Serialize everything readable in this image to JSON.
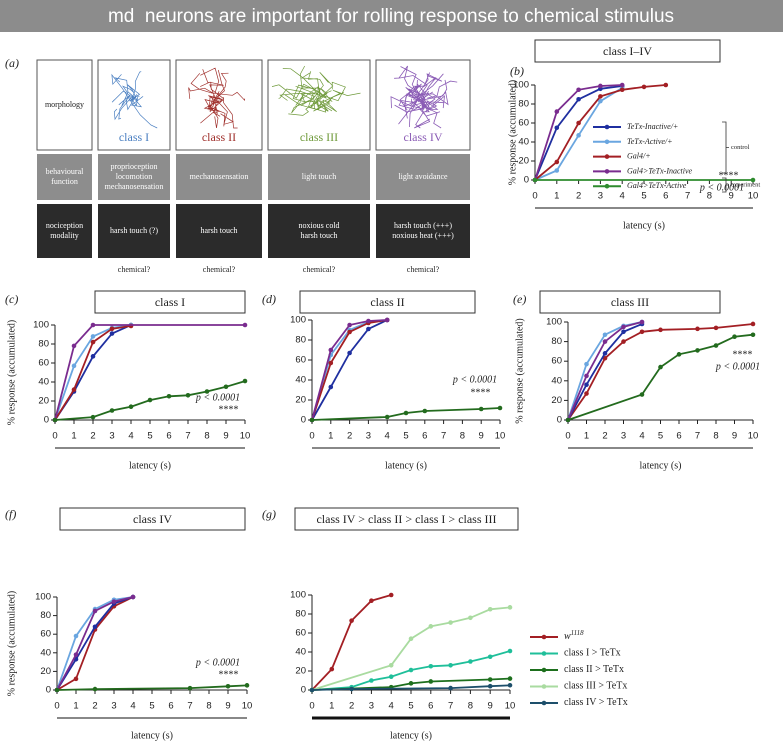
{
  "title": "md  neurons are important for rolling response to chemical stimulus",
  "panel_a": {
    "label": "(a)",
    "rows": [
      [
        [
          "morphology"
        ],
        [
          "class I"
        ],
        [
          "class II"
        ],
        [
          "class III"
        ],
        [
          "class IV"
        ]
      ],
      [
        [
          "behavioural",
          "function"
        ],
        [
          "proprioception",
          "locomotion",
          "mechanosensation"
        ],
        [
          "mechanosensation"
        ],
        [
          "light touch"
        ],
        [
          "light avoidance"
        ]
      ],
      [
        [
          "nociception",
          "modality"
        ],
        [
          "harsh touch (?)"
        ],
        [
          "harsh touch"
        ],
        [
          "noxious cold",
          "harsh touch"
        ],
        [
          "harsh touch (+++)",
          "noxious heat (+++)"
        ]
      ]
    ],
    "footnotes": [
      "chemical?",
      "chemical?",
      "chemical?",
      "chemical?"
    ]
  },
  "chart_data": [
    {
      "type": "line",
      "panel_label": "(b)",
      "title": "class I–IV",
      "xlabel": "latency (s)",
      "ylabel": "% response (accumulated)",
      "xlim": [
        0,
        10
      ],
      "xticks": [
        0,
        1,
        2,
        3,
        4,
        5,
        6,
        7,
        8,
        9,
        10
      ],
      "ylim": [
        0,
        100
      ],
      "yticks": [
        0,
        20,
        40,
        60,
        80,
        100
      ],
      "series": [
        {
          "name": "TeTx-Inactive/+",
          "color": "#1f2fa0",
          "x": [
            0,
            1,
            2,
            3,
            4
          ],
          "values": [
            0,
            55,
            85,
            96,
            99
          ]
        },
        {
          "name": "TeTx-Active/+",
          "color": "#6aa6e0",
          "x": [
            0,
            1,
            2,
            3,
            4
          ],
          "values": [
            0,
            10,
            47,
            83,
            97
          ]
        },
        {
          "name": "Gal4/+",
          "color": "#a31f24",
          "x": [
            0,
            1,
            2,
            3,
            4,
            5,
            6
          ],
          "values": [
            0,
            19,
            60,
            88,
            95,
            98,
            100
          ]
        },
        {
          "name": "Gal4>TeTx-Inactive",
          "color": "#7a2c8f",
          "x": [
            0,
            1,
            2,
            3,
            4
          ],
          "values": [
            0,
            72,
            95,
            99,
            100
          ]
        },
        {
          "name": "Gal4>TeTx-Active",
          "color": "#2e8b2e",
          "x": [
            0,
            10
          ],
          "values": [
            0,
            0
          ]
        }
      ],
      "legend_brackets": [
        "control",
        "experiment"
      ],
      "annotations": [
        "****",
        "p < 0.0001"
      ]
    },
    {
      "type": "line",
      "panel_label": "(c)",
      "title": "class I",
      "xlabel": "latency (s)",
      "ylabel": "% response (accumulated)",
      "xlim": [
        0,
        10
      ],
      "xticks": [
        0,
        1,
        2,
        3,
        4,
        5,
        6,
        7,
        8,
        9,
        10
      ],
      "ylim": [
        0,
        100
      ],
      "yticks": [
        0,
        20,
        40,
        60,
        80,
        100
      ],
      "series": [
        {
          "color": "#1f2fa0",
          "x": [
            0,
            1,
            2,
            3,
            4
          ],
          "values": [
            0,
            30,
            67,
            91,
            100
          ]
        },
        {
          "color": "#6aa6e0",
          "x": [
            0,
            1,
            2,
            3,
            4
          ],
          "values": [
            0,
            57,
            88,
            97,
            100
          ]
        },
        {
          "color": "#a31f24",
          "x": [
            0,
            1,
            2,
            3,
            4
          ],
          "values": [
            0,
            32,
            82,
            96,
            99
          ]
        },
        {
          "color": "#7a2c8f",
          "x": [
            0,
            1,
            2,
            10
          ],
          "values": [
            0,
            78,
            100,
            100
          ]
        },
        {
          "color": "#236b1e",
          "x": [
            0,
            2,
            3,
            4,
            5,
            6,
            7,
            8,
            9,
            10
          ],
          "values": [
            0,
            3,
            10,
            14,
            21,
            25,
            26,
            30,
            35,
            41
          ]
        }
      ],
      "annotations": [
        "p < 0.0001",
        "****"
      ]
    },
    {
      "type": "line",
      "panel_label": "(d)",
      "title": "class II",
      "xlabel": "latency (s)",
      "xlim": [
        0,
        10
      ],
      "xticks": [
        0,
        1,
        2,
        3,
        4,
        5,
        6,
        7,
        8,
        9,
        10
      ],
      "ylim": [
        0,
        100
      ],
      "yticks": [
        0,
        20,
        40,
        60,
        80,
        100
      ],
      "series": [
        {
          "color": "#1f2fa0",
          "x": [
            0,
            1,
            2,
            3,
            4
          ],
          "values": [
            0,
            33,
            67,
            91,
            100
          ]
        },
        {
          "color": "#6aa6e0",
          "x": [
            0,
            1,
            2,
            3,
            4
          ],
          "values": [
            0,
            65,
            90,
            98,
            100
          ]
        },
        {
          "color": "#a31f24",
          "x": [
            0,
            1,
            2,
            3,
            4
          ],
          "values": [
            0,
            57,
            88,
            97,
            100
          ]
        },
        {
          "color": "#7a2c8f",
          "x": [
            0,
            1,
            2,
            3,
            4
          ],
          "values": [
            0,
            70,
            95,
            99,
            100
          ]
        },
        {
          "color": "#236b1e",
          "x": [
            0,
            4,
            5,
            6,
            9,
            10
          ],
          "values": [
            0,
            3,
            7,
            9,
            11,
            12
          ]
        }
      ],
      "annotations": [
        "p < 0.0001",
        "****"
      ]
    },
    {
      "type": "line",
      "panel_label": "(e)",
      "title": "class III",
      "xlabel": "latency (s)",
      "ylabel": "% response (accumulated)",
      "xlim": [
        0,
        10
      ],
      "xticks": [
        0,
        1,
        2,
        3,
        4,
        5,
        6,
        7,
        8,
        9,
        10
      ],
      "ylim": [
        0,
        100
      ],
      "yticks": [
        0,
        20,
        40,
        60,
        80,
        100
      ],
      "series": [
        {
          "color": "#a31f24",
          "x": [
            0,
            1,
            2,
            3,
            4,
            5,
            7,
            8,
            10
          ],
          "values": [
            0,
            27,
            63,
            80,
            90,
            92,
            93,
            94,
            98
          ]
        },
        {
          "color": "#1f2fa0",
          "x": [
            0,
            1,
            2,
            3,
            4
          ],
          "values": [
            0,
            36,
            68,
            90,
            98
          ]
        },
        {
          "color": "#6aa6e0",
          "x": [
            0,
            1,
            2,
            3,
            4
          ],
          "values": [
            0,
            57,
            87,
            96,
            100
          ]
        },
        {
          "color": "#7a2c8f",
          "x": [
            0,
            1,
            2,
            3,
            4
          ],
          "values": [
            0,
            45,
            80,
            95,
            100
          ]
        },
        {
          "color": "#236b1e",
          "x": [
            0,
            4,
            5,
            6,
            7,
            8,
            9,
            10
          ],
          "values": [
            0,
            26,
            54,
            67,
            71,
            76,
            85,
            87
          ]
        }
      ],
      "annotations": [
        "****",
        "p < 0.0001"
      ]
    },
    {
      "type": "line",
      "panel_label": "(f)",
      "title": "class IV",
      "xlabel": "latency (s)",
      "ylabel": "% response (accumulated)",
      "xlim": [
        0,
        10
      ],
      "xticks": [
        0,
        1,
        2,
        3,
        4,
        5,
        6,
        7,
        8,
        9,
        10
      ],
      "ylim": [
        0,
        100
      ],
      "yticks": [
        0,
        20,
        40,
        60,
        80,
        100
      ],
      "series": [
        {
          "color": "#a31f24",
          "x": [
            0,
            1,
            2,
            3,
            4
          ],
          "values": [
            0,
            12,
            65,
            90,
            100
          ]
        },
        {
          "color": "#1f2fa0",
          "x": [
            0,
            1,
            2,
            3,
            4
          ],
          "values": [
            0,
            33,
            68,
            93,
            100
          ]
        },
        {
          "color": "#6aa6e0",
          "x": [
            0,
            1,
            2,
            3,
            4
          ],
          "values": [
            0,
            58,
            87,
            97,
            100
          ]
        },
        {
          "color": "#7a2c8f",
          "x": [
            0,
            1,
            2,
            3,
            4
          ],
          "values": [
            0,
            38,
            85,
            95,
            100
          ]
        },
        {
          "color": "#236b1e",
          "x": [
            0,
            2,
            7,
            9,
            10
          ],
          "values": [
            0,
            1,
            2,
            4,
            5
          ]
        }
      ],
      "annotations": [
        "p < 0.0001",
        "****"
      ]
    },
    {
      "type": "line",
      "panel_label": "(g)",
      "title": "class IV > class II > class I > class III",
      "xlabel": "latency (s)",
      "xlim": [
        0,
        10
      ],
      "xticks": [
        0,
        1,
        2,
        3,
        4,
        5,
        6,
        7,
        8,
        9,
        10
      ],
      "ylim": [
        0,
        100
      ],
      "yticks": [
        0,
        20,
        40,
        60,
        80,
        100
      ],
      "series": [
        {
          "name": "w",
          "name_sup": "1118",
          "color": "#a31f24",
          "x": [
            0,
            1,
            2,
            3,
            4
          ],
          "values": [
            0,
            22,
            73,
            94,
            100
          ]
        },
        {
          "name": "class I > TeTx",
          "color": "#1fbf9a",
          "x": [
            0,
            2,
            3,
            4,
            5,
            6,
            7,
            8,
            9,
            10
          ],
          "values": [
            0,
            3,
            10,
            14,
            21,
            25,
            26,
            30,
            35,
            41
          ]
        },
        {
          "name": "class II > TeTx",
          "color": "#1d6f1d",
          "x": [
            0,
            4,
            5,
            6,
            9,
            10
          ],
          "values": [
            0,
            3,
            7,
            9,
            11,
            12
          ]
        },
        {
          "name": "class III  > TeTx",
          "color": "#a9dba0",
          "x": [
            0,
            4,
            5,
            6,
            7,
            8,
            9,
            10
          ],
          "values": [
            0,
            26,
            54,
            67,
            71,
            76,
            85,
            87
          ]
        },
        {
          "name": "class IV > TeTx",
          "color": "#1d4f6b",
          "x": [
            0,
            2,
            7,
            9,
            10
          ],
          "values": [
            0,
            1,
            2,
            4,
            5
          ]
        }
      ]
    }
  ]
}
